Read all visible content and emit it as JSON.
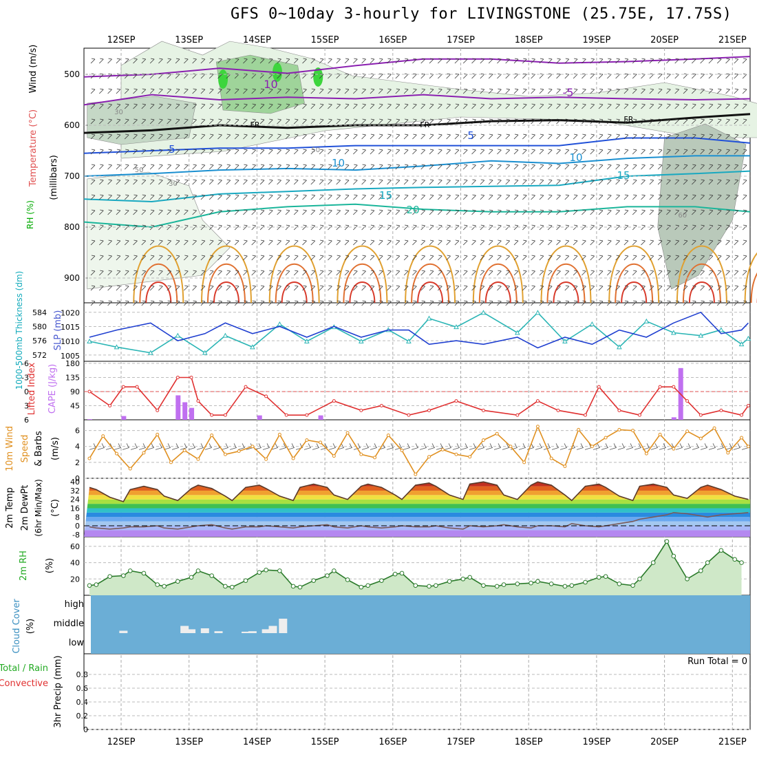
{
  "title": "GFS 0~10day 3-hourly for LIVINGSTONE (25.75E, 17.75S)",
  "dates": [
    "12SEP",
    "13SEP",
    "14SEP",
    "15SEP",
    "16SEP",
    "17SEP",
    "18SEP",
    "19SEP",
    "20SEP",
    "21SEP"
  ],
  "colors": {
    "temp_line": "#8a1fb0",
    "thick": "#1f3fd0",
    "slp": "#2bb5b5",
    "lifted": "#e03030",
    "cape": "#c070f0",
    "wind": "#e09020",
    "rh": "#33aa33",
    "cloud": "#6baed6"
  },
  "chart_data": [
    {
      "type": "line",
      "panel": "upper-air",
      "ylabel_parts": [
        "RH (%)",
        "Temperature (°C)",
        "Wind (m/s)"
      ],
      "yunit": "(millibars)",
      "y_ticks": [
        "500",
        "600",
        "700",
        "800",
        "900"
      ],
      "ylim": [
        950,
        450
      ],
      "freezing_label": "FR",
      "contour_labels": [
        "10",
        "-5",
        "5",
        "10",
        "10",
        "15",
        "15",
        "20",
        "30",
        "50",
        "30",
        "50",
        "60"
      ],
      "series": [
        {
          "name": "-10",
          "x_days": [
            0,
            1,
            2,
            3,
            4,
            5,
            6,
            7,
            8,
            9,
            9.7
          ],
          "y": [
            505,
            500,
            488,
            498,
            483,
            470,
            470,
            478,
            475,
            470,
            465
          ]
        },
        {
          "name": "-5",
          "x_days": [
            0,
            1,
            2,
            3,
            4,
            5,
            6,
            7,
            8,
            9,
            9.7
          ],
          "y": [
            560,
            540,
            550,
            545,
            548,
            540,
            548,
            545,
            548,
            550,
            548
          ]
        },
        {
          "name": "FR",
          "x_days": [
            0,
            1,
            2,
            3,
            4,
            5,
            6,
            7,
            8,
            9,
            9.7
          ],
          "y": [
            615,
            610,
            600,
            605,
            600,
            600,
            592,
            590,
            595,
            585,
            578
          ]
        },
        {
          "name": "5",
          "x_days": [
            0,
            1,
            2,
            3,
            4,
            5,
            6,
            7,
            8,
            9,
            9.7
          ],
          "y": [
            655,
            650,
            645,
            645,
            640,
            640,
            640,
            640,
            625,
            625,
            635
          ]
        },
        {
          "name": "10",
          "x_days": [
            0,
            1,
            2,
            3,
            4,
            5,
            6,
            7,
            8,
            9,
            9.7
          ],
          "y": [
            700,
            695,
            688,
            685,
            688,
            680,
            670,
            675,
            665,
            660,
            660
          ]
        },
        {
          "name": "15",
          "x_days": [
            0,
            1,
            2,
            3,
            4,
            5,
            6,
            7,
            8,
            9,
            9.7
          ],
          "y": [
            745,
            750,
            735,
            730,
            725,
            722,
            720,
            718,
            700,
            695,
            690
          ]
        },
        {
          "name": "20",
          "x_days": [
            0,
            1,
            2,
            3,
            4,
            5,
            6,
            7,
            8,
            9,
            9.7
          ],
          "y": [
            790,
            800,
            770,
            760,
            755,
            765,
            770,
            770,
            760,
            760,
            770
          ]
        }
      ]
    },
    {
      "type": "line",
      "panel": "thickness-slp",
      "ylabel_left": "1000-500mb Thickness (dm)",
      "ylabel_right": "SLP (mb)",
      "left_ticks": [
        "572",
        "576",
        "580",
        "584"
      ],
      "right_ticks": [
        "1005",
        "1010",
        "1015",
        "1020"
      ],
      "series": [
        {
          "name": "Thickness",
          "ylim": [
            571,
            585.5
          ],
          "x_days": [
            0,
            0.4,
            0.9,
            1.3,
            1.7,
            2.0,
            2.4,
            2.8,
            3.2,
            3.6,
            4.0,
            4.4,
            4.7,
            5.0,
            5.4,
            5.8,
            6.3,
            6.6,
            7.0,
            7.4,
            7.8,
            8.2,
            8.6,
            9.0,
            9.3,
            9.6,
            9.7
          ],
          "values": [
            577,
            579,
            581,
            576,
            578,
            581,
            578,
            580,
            577,
            580,
            577,
            579,
            579,
            575,
            576,
            575,
            577,
            574,
            577,
            575,
            579,
            577,
            581,
            584,
            578,
            579,
            581
          ]
        },
        {
          "name": "SLP",
          "ylim": [
            1004,
            1022
          ],
          "x_days": [
            0,
            0.4,
            0.9,
            1.3,
            1.7,
            2.0,
            2.4,
            2.8,
            3.2,
            3.6,
            4.0,
            4.4,
            4.7,
            5.0,
            5.4,
            5.8,
            6.3,
            6.6,
            7.0,
            7.4,
            7.8,
            8.2,
            8.6,
            9.0,
            9.3,
            9.6,
            9.7
          ],
          "values": [
            1010,
            1008,
            1006,
            1012,
            1006,
            1012,
            1008,
            1016,
            1010,
            1015,
            1010,
            1014,
            1010,
            1018,
            1015,
            1020,
            1013,
            1020,
            1010,
            1016,
            1008,
            1017,
            1013,
            1012,
            1014,
            1009,
            1011
          ]
        }
      ]
    },
    {
      "type": "bar",
      "panel": "lifted-cape",
      "ylabel_left": "Lifted Index",
      "ylabel_right": "CAPE (J/kg)",
      "li_ticks": [
        "-6",
        "-3",
        "0",
        "3",
        "6"
      ],
      "cape_ticks": [
        "45",
        "90",
        "135",
        "180"
      ],
      "cape_days": [
        0.0,
        0.5,
        1.3,
        1.4,
        1.5,
        1.6,
        2.4,
        2.5,
        3.4,
        8.4,
        8.6,
        8.7
      ],
      "cape_values": [
        2,
        12,
        78,
        56,
        38,
        0,
        0,
        14,
        14,
        0,
        8,
        165
      ],
      "li_days": [
        0,
        0.3,
        0.5,
        0.7,
        1.0,
        1.3,
        1.5,
        1.6,
        1.8,
        2.0,
        2.3,
        2.6,
        2.9,
        3.2,
        3.6,
        4.0,
        4.3,
        4.7,
        5.0,
        5.4,
        5.8,
        6.3,
        6.6,
        6.9,
        7.3,
        7.5,
        7.8,
        8.1,
        8.4,
        8.6,
        8.8,
        9.0,
        9.3,
        9.6,
        9.7
      ],
      "li_values": [
        0,
        3,
        -1,
        -1,
        4,
        -3,
        -3,
        2,
        5,
        5,
        -1,
        1,
        5,
        5,
        2,
        4,
        3,
        5,
        4,
        2,
        4,
        5,
        2,
        4,
        5,
        -1,
        4,
        5,
        -1,
        -1,
        2,
        5,
        4,
        5,
        3
      ]
    },
    {
      "type": "line",
      "panel": "wind10m",
      "ylabel_parts": [
        "10m Wind",
        "Speed",
        "& Barbs"
      ],
      "yunit": "(m/s)",
      "y_ticks": [
        "0",
        "2",
        "4",
        "6"
      ],
      "ylim": [
        0,
        7
      ],
      "x_days": [
        0,
        0.2,
        0.4,
        0.6,
        0.8,
        1.0,
        1.2,
        1.4,
        1.6,
        1.8,
        2.0,
        2.2,
        2.4,
        2.6,
        2.8,
        3.0,
        3.2,
        3.4,
        3.6,
        3.8,
        4.0,
        4.2,
        4.4,
        4.6,
        4.8,
        5.0,
        5.2,
        5.4,
        5.6,
        5.8,
        6.0,
        6.2,
        6.4,
        6.6,
        6.8,
        7.0,
        7.2,
        7.4,
        7.6,
        7.8,
        8.0,
        8.2,
        8.4,
        8.6,
        8.8,
        9.0,
        9.2,
        9.4,
        9.6,
        9.7
      ],
      "values": [
        2.5,
        5.3,
        3.1,
        1.2,
        3.2,
        5.5,
        2.0,
        3.5,
        2.4,
        5.4,
        3.0,
        3.4,
        4.0,
        2.4,
        5.5,
        2.5,
        4.8,
        4.5,
        2.8,
        5.7,
        3.0,
        2.6,
        5.4,
        3.5,
        0.5,
        2.7,
        3.6,
        3.0,
        2.7,
        4.8,
        5.6,
        4.0,
        2.0,
        6.5,
        2.5,
        1.5,
        6.1,
        4.0,
        5.1,
        6.1,
        6.0,
        3.1,
        5.5,
        3.7,
        5.9,
        5.0,
        6.3,
        3.2,
        5.1,
        4.0
      ]
    },
    {
      "type": "area",
      "panel": "temperature",
      "ylabel_parts": [
        "2m Temp",
        "2m DewPt",
        "(6hr Min/Max)"
      ],
      "yunit": "(°C)",
      "y_ticks": [
        "-8",
        "0",
        "8",
        "16",
        "24",
        "32",
        "40"
      ],
      "ylim": [
        -10,
        42
      ],
      "x_days": [
        0,
        0.1,
        0.3,
        0.5,
        0.6,
        0.8,
        1.0,
        1.1,
        1.3,
        1.5,
        1.6,
        1.8,
        2.0,
        2.1,
        2.3,
        2.5,
        2.6,
        2.8,
        3.0,
        3.1,
        3.3,
        3.5,
        3.6,
        3.8,
        4.0,
        4.1,
        4.3,
        4.5,
        4.6,
        4.8,
        5.0,
        5.1,
        5.3,
        5.5,
        5.6,
        5.8,
        6.0,
        6.1,
        6.3,
        6.5,
        6.6,
        6.8,
        7.0,
        7.1,
        7.3,
        7.5,
        7.6,
        7.8,
        8.0,
        8.1,
        8.3,
        8.5,
        8.6,
        8.8,
        9.0,
        9.1,
        9.3,
        9.5,
        9.7
      ],
      "temp": [
        35,
        33,
        26,
        22,
        33,
        36,
        33,
        27,
        23,
        34,
        37,
        34,
        27,
        23,
        35,
        37,
        34,
        27,
        23,
        35,
        38,
        35,
        28,
        24,
        36,
        38,
        35,
        28,
        24,
        37,
        39,
        36,
        28,
        24,
        38,
        40,
        37,
        28,
        24,
        37,
        40,
        37,
        28,
        23,
        36,
        38,
        35,
        27,
        23,
        36,
        38,
        35,
        28,
        25,
        35,
        37,
        33,
        27,
        24
      ],
      "dewpt": [
        -1,
        -2,
        -3,
        -2,
        -1,
        -1,
        0,
        -2,
        -3,
        -1,
        0,
        1,
        -2,
        -3,
        -1,
        -1,
        0,
        -1,
        -2,
        -1,
        0,
        1,
        -1,
        -2,
        0,
        -1,
        -2,
        -1,
        0,
        -1,
        -1,
        0,
        -2,
        -3,
        0,
        -1,
        0,
        1,
        -1,
        -2,
        0,
        0,
        -1,
        2,
        0,
        -1,
        0,
        2,
        4,
        6,
        8,
        10,
        12,
        11,
        9,
        8,
        10,
        11,
        12
      ]
    },
    {
      "type": "area",
      "panel": "rh2m",
      "ylabel": "2m RH",
      "yunit": "(%)",
      "y_ticks": [
        "20",
        "40",
        "60"
      ],
      "ylim": [
        0,
        70
      ],
      "x_days": [
        0,
        0.1,
        0.3,
        0.5,
        0.6,
        0.8,
        1.0,
        1.1,
        1.3,
        1.5,
        1.6,
        1.8,
        2.0,
        2.1,
        2.3,
        2.5,
        2.6,
        2.8,
        3.0,
        3.1,
        3.3,
        3.5,
        3.6,
        3.8,
        4.0,
        4.1,
        4.3,
        4.5,
        4.6,
        4.8,
        5.0,
        5.1,
        5.3,
        5.5,
        5.6,
        5.8,
        6.0,
        6.1,
        6.3,
        6.5,
        6.6,
        6.8,
        7.0,
        7.1,
        7.3,
        7.5,
        7.6,
        7.8,
        8.0,
        8.1,
        8.3,
        8.5,
        8.6,
        8.8,
        9.0,
        9.1,
        9.3,
        9.5,
        9.6
      ],
      "values": [
        12,
        13,
        23,
        24,
        30,
        27,
        13,
        11,
        17,
        22,
        30,
        24,
        11,
        10,
        18,
        28,
        31,
        30,
        11,
        10,
        18,
        24,
        30,
        19,
        10,
        12,
        18,
        26,
        27,
        12,
        11,
        12,
        17,
        20,
        22,
        12,
        11,
        13,
        14,
        15,
        17,
        14,
        11,
        12,
        16,
        22,
        23,
        14,
        12,
        20,
        40,
        66,
        48,
        20,
        30,
        40,
        55,
        44,
        40
      ]
    },
    {
      "type": "bar",
      "panel": "cloud",
      "ylabel": "Cloud Cover",
      "yunit": "(%)",
      "levels": [
        "high",
        "middle",
        "low"
      ],
      "x_days": [
        0.5,
        1.4,
        1.5,
        1.7,
        1.9,
        2.3,
        2.4,
        2.6,
        2.7,
        2.85
      ],
      "values": [
        5,
        15,
        8,
        10,
        4,
        3,
        4,
        8,
        15,
        30
      ]
    },
    {
      "type": "bar",
      "panel": "precip",
      "ylabel_parts": [
        "Total / Rain",
        "Convective"
      ],
      "yunit": "3hr Precip (mm)",
      "y_ticks": [
        "0",
        "0.2",
        "0.4",
        "0.6",
        "0.8"
      ],
      "ylim": [
        0,
        1
      ],
      "run_total": "Run Total = 0",
      "values": []
    }
  ]
}
